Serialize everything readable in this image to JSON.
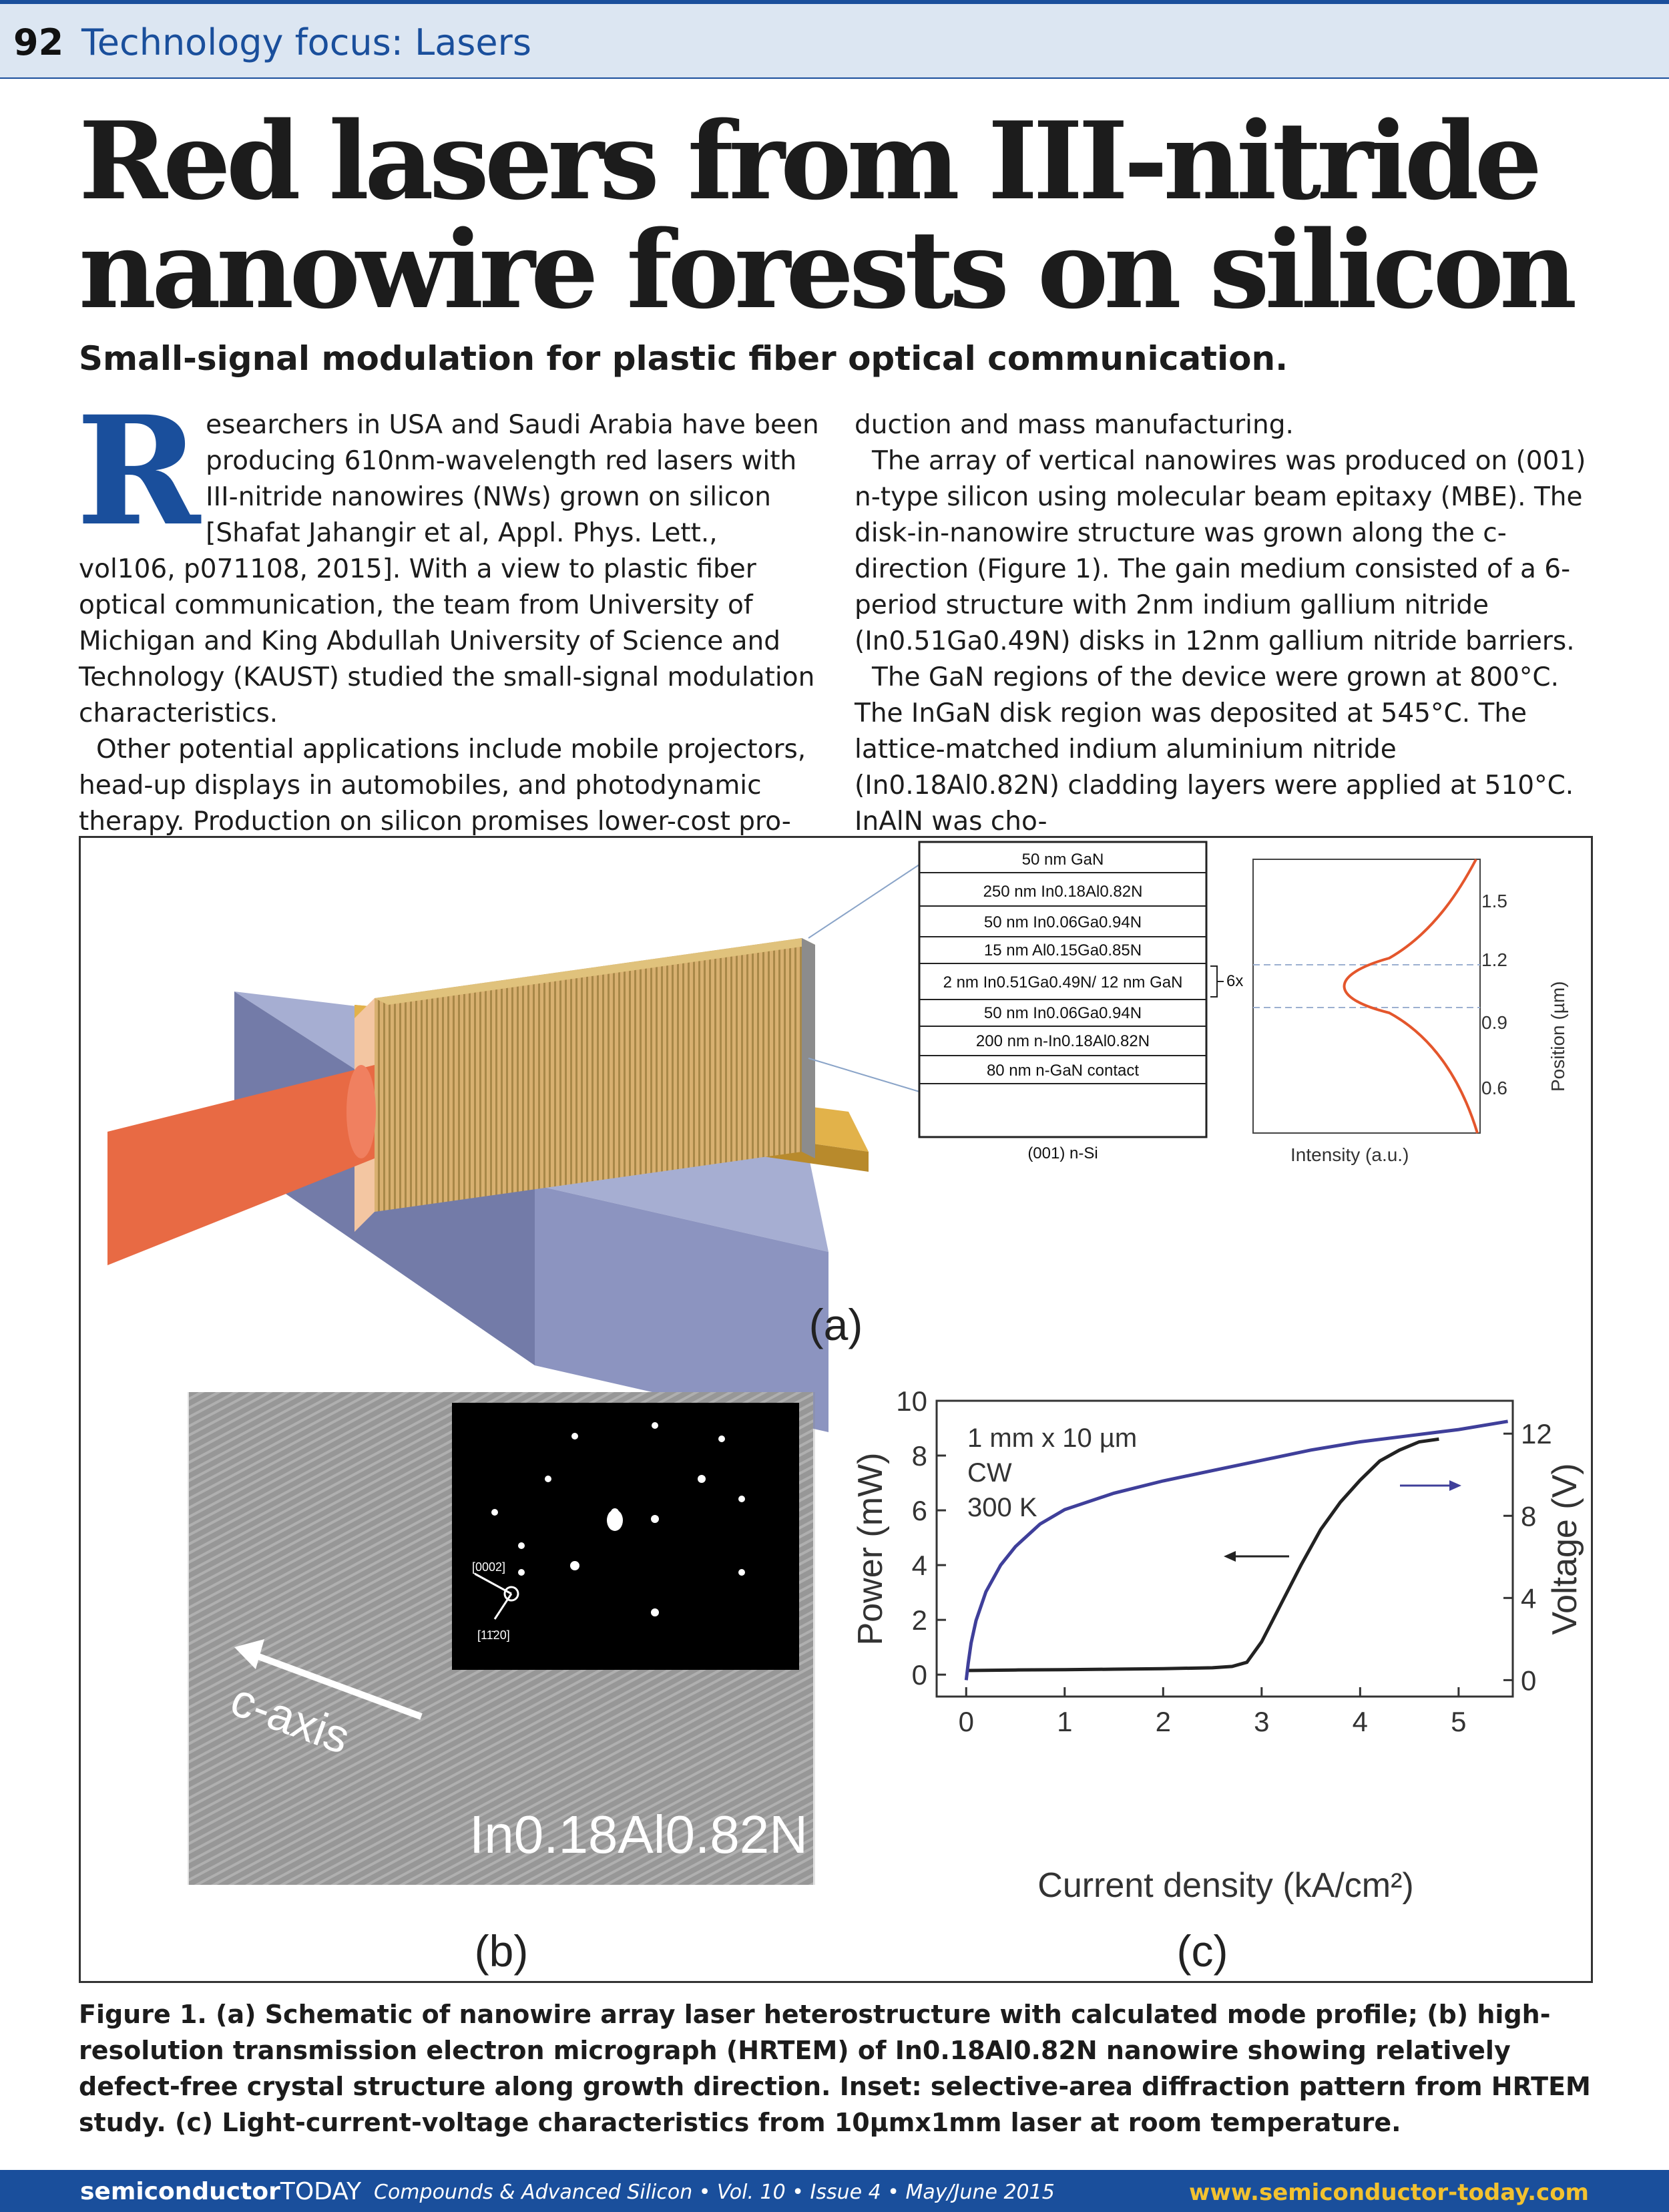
{
  "header": {
    "page_number": "92",
    "section": "Technology focus: Lasers"
  },
  "article": {
    "title_line1": "Red lasers from III-nitride",
    "title_line2": "nanowire forests on silicon",
    "subtitle": "Small-signal modulation for plastic fiber optical communication.",
    "drop_cap": "R",
    "col1_p1": "esearchers in USA and Saudi Arabia have been producing 610nm-wavelength red lasers with III-nitride nanowires (NWs) grown on silicon [Shafat Jahangir et al, Appl. Phys. Lett., vol106, p071108, 2015]. With a view to plastic fiber optical communication, the team from University of Michigan and King Abdullah University of Science and Technology (KAUST) studied the small-signal modulation characteristics.",
    "col1_p2": "Other potential applications include mobile projectors, head-up displays in automobiles, and photodynamic therapy. Production on silicon promises lower-cost pro-",
    "col2_p1": "duction and mass manufacturing.",
    "col2_p2": "The array of vertical nanowires was produced on (001) n-type silicon using molecular beam epitaxy (MBE). The disk-in-nanowire structure was grown along the c-direction (Figure 1). The gain medium consisted of a 6-period structure with 2nm indium gallium nitride (In0.51Ga0.49N) disks in 12nm gallium nitride barriers.",
    "col2_p3": "The GaN regions of the device were grown at 800°C. The InGaN disk region was deposited at 545°C. The lattice-matched indium aluminium nitride (In0.18Al0.82N) cladding layers were applied at 510°C. InAlN was cho-"
  },
  "figure": {
    "panel_a_label": "(a)",
    "panel_b_label": "(b)",
    "panel_c_label": "(c)",
    "layers": [
      "50 nm GaN",
      "250 nm In0.18Al0.82N",
      "50 nm In0.06Ga0.94N",
      "15 nm Al0.15Ga0.85N",
      "2 nm In0.51Ga0.49N/ 12 nm GaN",
      "50 nm In0.06Ga0.94N",
      "200 nm n-In0.18Al0.82N",
      "80 nm n-GaN contact",
      "(001) n-Si"
    ],
    "period_label": "6x",
    "mode_profile": {
      "xlabel": "Intensity (a.u.)",
      "ylabel": "Position (µm)",
      "ticks": [
        "1.5",
        "1.2",
        "0.9",
        "0.6"
      ]
    },
    "hrtem": {
      "axis_label": "c-axis",
      "material": "In0.18Al0.82N",
      "inset_label1": "[0002]",
      "inset_label2": "[11̄20]"
    }
  },
  "chart_data": {
    "type": "line",
    "title": "",
    "annotations": [
      "1 mm x 10 µm",
      "CW",
      "300 K"
    ],
    "xlabel": "Current density (kA/cm²)",
    "ylabel": "Power (mW)",
    "y2label": "Voltage (V)",
    "xlim": [
      -0.3,
      5.55
    ],
    "ylim": [
      -0.8,
      10
    ],
    "y2lim": [
      -0.8,
      13.6
    ],
    "x_ticks": [
      0,
      1,
      2,
      3,
      4,
      5
    ],
    "y_ticks": [
      0,
      2,
      4,
      6,
      8,
      10
    ],
    "y2_ticks": [
      0,
      4,
      8,
      12
    ],
    "series": [
      {
        "name": "",
        "axis": "left",
        "color": "#222222",
        "x": [
          0,
          0.5,
          1,
          1.5,
          2,
          2.5,
          2.7,
          2.85,
          3.0,
          3.2,
          3.4,
          3.6,
          3.8,
          4.0,
          4.2,
          4.4,
          4.6,
          4.8
        ],
        "y": [
          0.15,
          0.17,
          0.18,
          0.2,
          0.22,
          0.25,
          0.3,
          0.45,
          1.2,
          2.6,
          4.0,
          5.3,
          6.3,
          7.1,
          7.8,
          8.2,
          8.5,
          8.6
        ]
      },
      {
        "name": "",
        "axis": "right",
        "color": "#3f3f9a",
        "x": [
          0,
          0.02,
          0.05,
          0.1,
          0.2,
          0.35,
          0.5,
          0.75,
          1.0,
          1.5,
          2.0,
          2.5,
          3.0,
          3.5,
          4.0,
          4.5,
          5.0,
          5.5
        ],
        "y": [
          0,
          0.8,
          1.8,
          2.9,
          4.3,
          5.6,
          6.5,
          7.6,
          8.3,
          9.1,
          9.7,
          10.2,
          10.7,
          11.2,
          11.6,
          11.9,
          12.2,
          12.6
        ]
      }
    ]
  },
  "caption": {
    "text": "Figure 1. (a) Schematic of nanowire array laser heterostructure with calculated mode profile; (b) high-resolution transmission electron micrograph (HRTEM) of In0.18Al0.82N nanowire showing relatively defect-free crystal structure along growth direction. Inset: selective-area diffraction pattern from HRTEM study. (c) Light-current-voltage characteristics from 10µmx1mm laser at room temperature."
  },
  "footer": {
    "brand_bold": "semiconductor",
    "brand_light": "TODAY",
    "meta": "Compounds & Advanced Silicon • Vol. 10 • Issue 4 • May/June 2015",
    "url": "www.semiconductor-today.com"
  }
}
